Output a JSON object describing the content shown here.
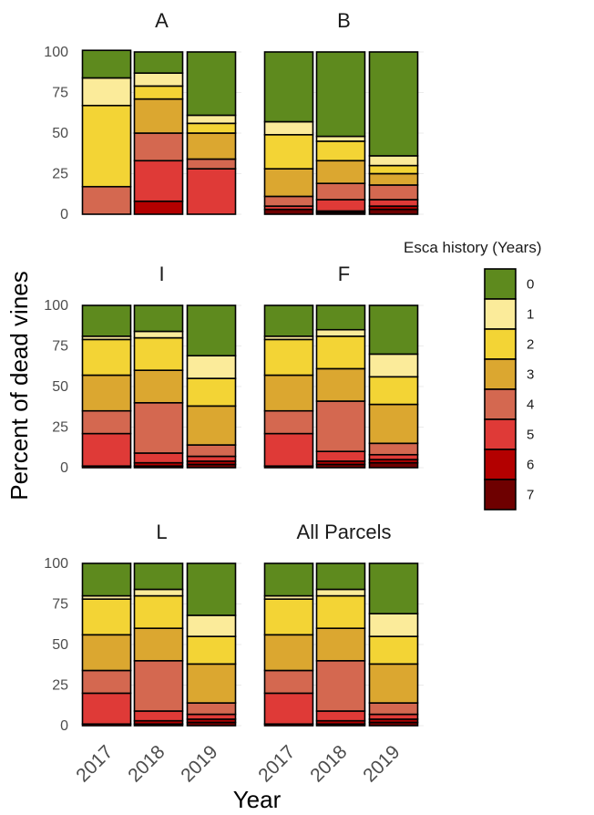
{
  "chart_data": {
    "type": "bar",
    "stacked": true,
    "ylabel": "Percent of dead vines",
    "xlabel": "Year",
    "ylim": [
      0,
      100
    ],
    "y_ticks": [
      0,
      25,
      50,
      75,
      100
    ],
    "categories": [
      "2017",
      "2018",
      "2019"
    ],
    "legend": {
      "title": "Esca history (Years)",
      "position": "right",
      "entries": [
        {
          "label": "0",
          "color": "#5e8a1e"
        },
        {
          "label": "1",
          "color": "#fbeb9a"
        },
        {
          "label": "2",
          "color": "#f3d435"
        },
        {
          "label": "3",
          "color": "#dba730"
        },
        {
          "label": "4",
          "color": "#d46850"
        },
        {
          "label": "5",
          "color": "#df3a37"
        },
        {
          "label": "6",
          "color": "#b30000"
        },
        {
          "label": "7",
          "color": "#6e0000"
        }
      ]
    },
    "panels": [
      {
        "title": "A",
        "bars": [
          [
            17,
            17,
            50,
            0,
            17,
            0,
            0,
            0
          ],
          [
            13,
            8,
            8,
            21,
            17,
            25,
            8,
            0
          ],
          [
            39,
            5,
            6,
            16,
            6,
            28,
            0,
            0
          ]
        ]
      },
      {
        "title": "B",
        "bars": [
          [
            43,
            8,
            21,
            17,
            6,
            2,
            0,
            3
          ],
          [
            52,
            3,
            12,
            14,
            10,
            7,
            1,
            1
          ],
          [
            64,
            6,
            5,
            7,
            9,
            4,
            2,
            3
          ]
        ]
      },
      {
        "title": "I",
        "bars": [
          [
            19,
            2,
            22,
            22,
            14,
            20,
            1,
            0
          ],
          [
            16,
            4,
            20,
            20,
            31,
            6,
            2,
            1
          ],
          [
            31,
            14,
            17,
            24,
            7,
            3,
            2,
            2
          ]
        ]
      },
      {
        "title": "F",
        "bars": [
          [
            19,
            2,
            22,
            22,
            14,
            20,
            1,
            0
          ],
          [
            15,
            4,
            20,
            20,
            31,
            6,
            2,
            2
          ],
          [
            30,
            14,
            17,
            24,
            7,
            3,
            2,
            3
          ]
        ]
      },
      {
        "title": "L",
        "bars": [
          [
            20,
            2,
            22,
            22,
            14,
            19,
            1,
            0
          ],
          [
            16,
            4,
            20,
            20,
            31,
            6,
            2,
            1
          ],
          [
            32,
            13,
            17,
            24,
            7,
            3,
            2,
            2
          ]
        ]
      },
      {
        "title": "All Parcels",
        "bars": [
          [
            20,
            2,
            22,
            22,
            14,
            19,
            1,
            0
          ],
          [
            16,
            4,
            20,
            20,
            31,
            6,
            2,
            1
          ],
          [
            31,
            14,
            17,
            24,
            7,
            3,
            2,
            2
          ]
        ]
      }
    ]
  }
}
